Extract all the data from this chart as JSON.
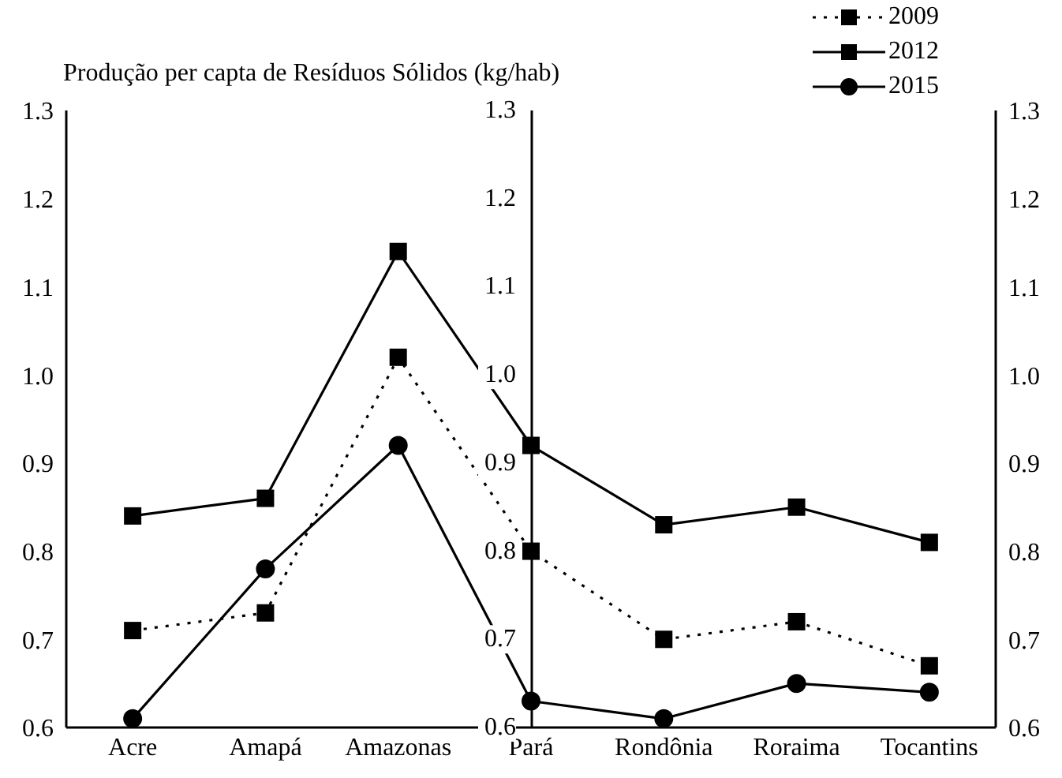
{
  "chart_data": {
    "type": "line",
    "title": "Produção per capta de Resíduos Sólidos (kg/hab)",
    "categories": [
      "Acre",
      "Amapá",
      "Amazonas",
      "Pará",
      "Rondônia",
      "Roraima",
      "Tocantins"
    ],
    "series": [
      {
        "name": "2009",
        "color": "#000000",
        "line_style": "dotted",
        "marker": "square",
        "values": [
          0.71,
          0.73,
          1.02,
          0.8,
          0.7,
          0.72,
          0.67
        ]
      },
      {
        "name": "2012",
        "color": "#000000",
        "line_style": "solid",
        "marker": "square",
        "values": [
          0.84,
          0.86,
          1.14,
          0.92,
          0.83,
          0.85,
          0.81
        ]
      },
      {
        "name": "2015",
        "color": "#000000",
        "line_style": "solid",
        "marker": "circle",
        "values": [
          0.61,
          0.78,
          0.92,
          0.63,
          0.61,
          0.65,
          0.64
        ]
      }
    ],
    "ylim": [
      0.6,
      1.3
    ],
    "yticks": [
      0.6,
      0.7,
      0.8,
      0.9,
      {
        "value": 1,
        "label": "1.0"
      },
      1.1,
      1.2,
      1.3
    ],
    "y2lim": [
      0.6,
      1.3
    ],
    "y2ticks": [
      0.6,
      0.7,
      0.8,
      0.9,
      {
        "value": 1,
        "label": "1.0"
      },
      1.1,
      1.2,
      1.3
    ],
    "y3lim": [
      0.6,
      1.3
    ],
    "y3ticks": [
      0.6,
      0.7,
      0.8,
      0.9,
      {
        "value": 1,
        "label": "1.0"
      },
      1.1,
      1.2,
      1.3
    ],
    "legend": "top right"
  }
}
